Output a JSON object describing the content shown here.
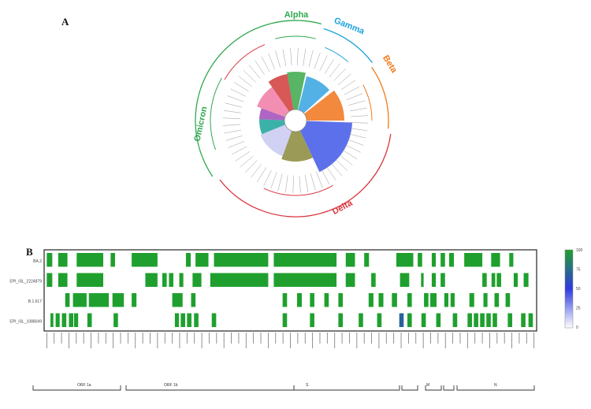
{
  "panel_a": {
    "label": "A",
    "clades": [
      {
        "name": "Alpha",
        "color": "#2fa84f"
      },
      {
        "name": "Gamma",
        "color": "#1aa3d9"
      },
      {
        "name": "Beta",
        "color": "#f07a1a"
      },
      {
        "name": "Delta",
        "color": "#d9363e"
      },
      {
        "name": "Omicron",
        "color": "#2fa84f"
      }
    ],
    "sector_colors": [
      "#3aa84a",
      "#35a3e0",
      "#f0741a",
      "#3f57e8",
      "#8a8a3a",
      "#c9c9f2",
      "#1aa39a",
      "#a04ab8",
      "#f07aa5",
      "#d13a3a"
    ]
  },
  "panel_b": {
    "label": "B",
    "row_labels": [
      "BA.2",
      "EPI_ISL_2224879",
      "B.1.617",
      "EPI_ISL_1088049"
    ],
    "colorbar": {
      "min": 0,
      "max": 100,
      "ticks": [
        "100",
        "75",
        "50",
        "25",
        "0"
      ],
      "high_color": "#1fa02e",
      "mid_color": "#2f3ae0",
      "low_color": "#ffffff"
    },
    "regions": [
      "ORF 1a",
      "ORF 1b",
      "S",
      "M",
      "N"
    ]
  },
  "chart_data": {
    "type": "heatmap",
    "rows": [
      "BA.2",
      "EPI_ISL_2224879",
      "B.1.617",
      "EPI_ISL_1088049"
    ],
    "cells": [
      [
        [
          0.5,
          2,
          100
        ],
        [
          3.6,
          6.1,
          100
        ],
        [
          8.6,
          15.8,
          100
        ],
        [
          17.8,
          19,
          100
        ],
        [
          23.5,
          30.5,
          100
        ],
        [
          38.2,
          39.5,
          100
        ],
        [
          40.8,
          44.3,
          100
        ],
        [
          45.8,
          60.5,
          100
        ],
        [
          62,
          79,
          100
        ],
        [
          81.5,
          84,
          100
        ],
        [
          86.5,
          87.8,
          100
        ],
        [
          95.2,
          99.8,
          100
        ],
        [
          101,
          102.2,
          100
        ],
        [
          104.8,
          105.9,
          100
        ],
        [
          107.2,
          108.4,
          100
        ],
        [
          109.5,
          110.8,
          100
        ],
        [
          113.6,
          118.5,
          100
        ],
        [
          120.9,
          123.3,
          100
        ],
        [
          125.8,
          126.9,
          100
        ]
      ],
      [
        [
          0.5,
          2,
          100
        ],
        [
          3.6,
          6.1,
          100
        ],
        [
          8.6,
          15.8,
          100
        ],
        [
          27.2,
          30.5,
          100
        ],
        [
          31.8,
          33,
          100
        ],
        [
          33.6,
          34.8,
          100
        ],
        [
          36.4,
          37.5,
          100
        ],
        [
          40,
          42.4,
          100
        ],
        [
          44.8,
          60.5,
          100
        ],
        [
          62,
          79,
          100
        ],
        [
          81.5,
          84,
          100
        ],
        [
          88.4,
          89.6,
          100
        ],
        [
          96.2,
          98.7,
          100
        ],
        [
          101.9,
          102.6,
          100
        ],
        [
          104.8,
          105.9,
          100
        ],
        [
          107.2,
          108.4,
          100
        ],
        [
          118.5,
          119.7,
          100
        ],
        [
          121,
          122,
          100
        ],
        [
          122.4,
          123.6,
          100
        ],
        [
          127,
          128.1,
          100
        ],
        [
          129.7,
          131,
          100
        ]
      ],
      [
        [
          5.5,
          6.7,
          100
        ],
        [
          7.6,
          11.3,
          100
        ],
        [
          11.9,
          17.3,
          100
        ],
        [
          18.3,
          21.4,
          100
        ],
        [
          23.5,
          24.8,
          100
        ],
        [
          34.5,
          37.3,
          100
        ],
        [
          39.6,
          40.8,
          100
        ],
        [
          64.4,
          65.6,
          100
        ],
        [
          68.3,
          69.6,
          100
        ],
        [
          71.8,
          73,
          100
        ],
        [
          75.7,
          76.9,
          100
        ],
        [
          79.5,
          80.7,
          100
        ],
        [
          87.7,
          89,
          100
        ],
        [
          90.4,
          91.7,
          100
        ],
        [
          94,
          95.4,
          100
        ],
        [
          98.2,
          99.4,
          100
        ],
        [
          102.7,
          103.9,
          100
        ],
        [
          104.4,
          106.1,
          100
        ],
        [
          108.2,
          109.3,
          100
        ],
        [
          109.9,
          111,
          100
        ],
        [
          115,
          116.3,
          100
        ],
        [
          118.8,
          119.9,
          100
        ],
        [
          121.8,
          123,
          100
        ],
        [
          124.8,
          126,
          100
        ]
      ],
      [
        [
          1.5,
          2.3,
          100
        ],
        [
          2.9,
          4,
          100
        ],
        [
          4.6,
          5.8,
          100
        ],
        [
          6.5,
          7.7,
          100
        ],
        [
          7.9,
          9,
          100
        ],
        [
          11.5,
          12.7,
          100
        ],
        [
          18.6,
          19.8,
          100
        ],
        [
          35.2,
          36.3,
          100
        ],
        [
          36.8,
          38,
          100
        ],
        [
          38.5,
          39.7,
          100
        ],
        [
          40.4,
          41.6,
          100
        ],
        [
          45.2,
          46.4,
          100
        ],
        [
          64.4,
          65.6,
          100
        ],
        [
          71.8,
          73,
          100
        ],
        [
          79.5,
          80.7,
          100
        ],
        [
          85,
          86.2,
          100
        ],
        [
          90,
          91.2,
          100
        ],
        [
          96,
          97.2,
          70
        ],
        [
          98.2,
          99.4,
          100
        ],
        [
          102,
          103.2,
          100
        ],
        [
          106,
          107.2,
          100
        ],
        [
          110.5,
          111.7,
          100
        ],
        [
          114.5,
          115.7,
          100
        ],
        [
          116.2,
          117.4,
          100
        ],
        [
          117.9,
          119.1,
          100
        ],
        [
          119.6,
          120.8,
          100
        ],
        [
          121.3,
          122.5,
          100
        ],
        [
          125.4,
          126.6,
          100
        ],
        [
          129,
          130.2,
          100
        ],
        [
          131,
          132.2,
          100
        ]
      ]
    ],
    "n_cols": 133,
    "value_range": [
      0,
      100
    ]
  }
}
